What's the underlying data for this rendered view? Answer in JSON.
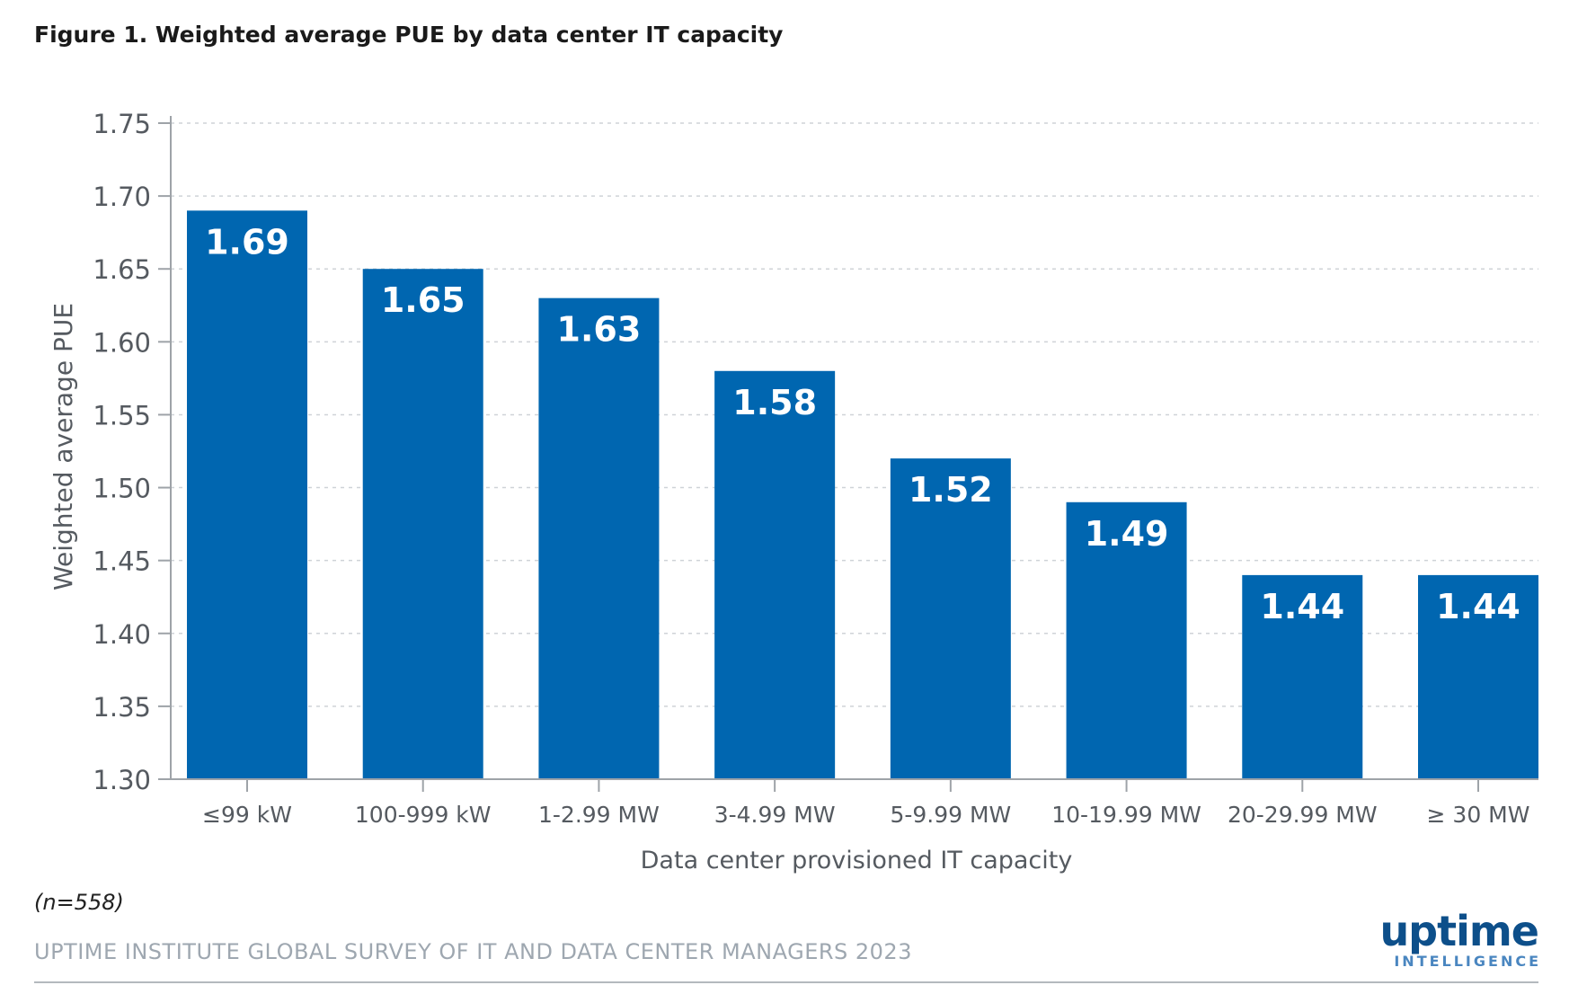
{
  "figure": {
    "title": "Figure 1. Weighted average PUE by data center IT capacity",
    "note": "(n=558)",
    "source": "UPTIME INSTITUTE GLOBAL SURVEY OF IT AND DATA CENTER MANAGERS 2023"
  },
  "brand": {
    "word": "uptime",
    "sub": "INTELLIGENCE",
    "color": "#0d4f8a",
    "sub_color": "#4a86c0"
  },
  "chart_data": {
    "type": "bar",
    "title": "Figure 1. Weighted average PUE by data center IT capacity",
    "xlabel": "Data center provisioned IT capacity",
    "ylabel": "Weighted average PUE",
    "categories": [
      "≤99 kW",
      "100-999 kW",
      "1-2.99 MW",
      "3-4.99 MW",
      "5-9.99 MW",
      "10-19.99 MW",
      "20-29.99 MW",
      "≥ 30 MW"
    ],
    "values": [
      1.69,
      1.65,
      1.63,
      1.58,
      1.52,
      1.49,
      1.44,
      1.44
    ],
    "value_labels": [
      "1.69",
      "1.65",
      "1.63",
      "1.58",
      "1.52",
      "1.49",
      "1.44",
      "1.44"
    ],
    "ylim": [
      1.3,
      1.75
    ],
    "yticks": [
      1.3,
      1.35,
      1.4,
      1.45,
      1.5,
      1.55,
      1.6,
      1.65,
      1.7,
      1.75
    ],
    "ytick_labels": [
      "1.30",
      "1.35",
      "1.40",
      "1.45",
      "1.50",
      "1.55",
      "1.60",
      "1.65",
      "1.70",
      "1.75"
    ],
    "grid": true,
    "legend": false,
    "bar_color": "#0066b0",
    "label_color": "#ffffff"
  }
}
